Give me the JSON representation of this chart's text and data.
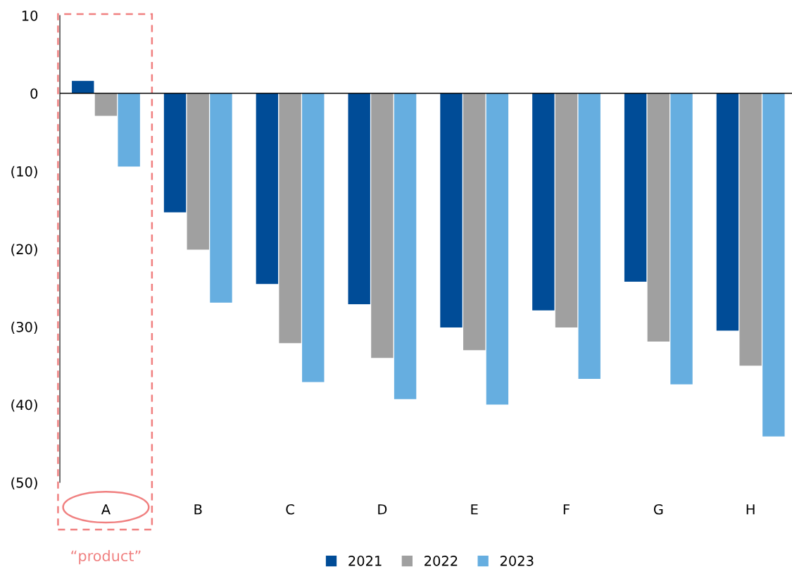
{
  "chart_data": {
    "type": "bar",
    "categories": [
      "A",
      "B",
      "C",
      "D",
      "E",
      "F",
      "G",
      "H"
    ],
    "series": [
      {
        "name": "2021",
        "color": "#004c97",
        "values": [
          1.6,
          -15.3,
          -24.5,
          -27.1,
          -30.1,
          -27.9,
          -24.2,
          -30.5
        ]
      },
      {
        "name": "2022",
        "color": "#a0a0a0",
        "values": [
          -2.9,
          -20.1,
          -32.1,
          -34.0,
          -33.0,
          -30.1,
          -31.9,
          -35.0
        ]
      },
      {
        "name": "2023",
        "color": "#66aee0",
        "values": [
          -9.4,
          -26.9,
          -37.1,
          -39.3,
          -40.0,
          -36.7,
          -37.4,
          -44.1
        ]
      }
    ],
    "ylim": [
      -50,
      10
    ],
    "yticks": [
      {
        "value": -50,
        "label": "(50)"
      },
      {
        "value": -40,
        "label": "(40)"
      },
      {
        "value": -30,
        "label": "(30)"
      },
      {
        "value": -20,
        "label": "(20)"
      },
      {
        "value": -10,
        "label": "(10)"
      },
      0,
      10
    ],
    "annotations": [
      "“product”"
    ],
    "ref_lines": [
      {
        "axis": "y",
        "value": 0,
        "color": "#000000"
      }
    ],
    "legend": "bottom"
  }
}
